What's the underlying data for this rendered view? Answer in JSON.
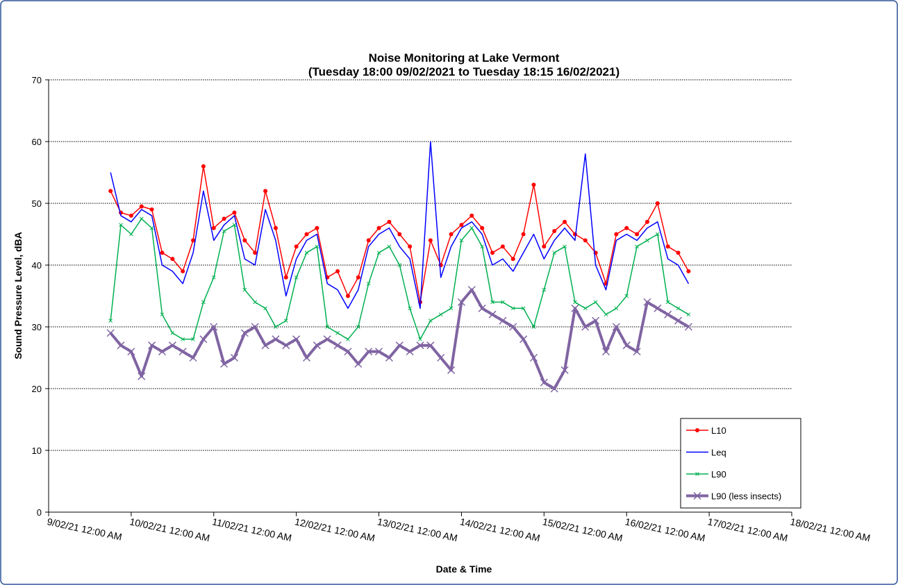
{
  "chart_data": {
    "type": "line",
    "title": "Noise Monitoring at Lake Vermont",
    "subtitle": "(Tuesday 18:00 09/02/2021 to Tuesday 18:15 16/02/2021)",
    "x_label": "Date & Time",
    "y_label": "Sound Pressure Level, dBA",
    "x": [
      "2021-02-09T18:00",
      "2021-02-09T21:00",
      "2021-02-10T00:00",
      "2021-02-10T03:00",
      "2021-02-10T06:00",
      "2021-02-10T09:00",
      "2021-02-10T12:00",
      "2021-02-10T15:00",
      "2021-02-10T18:00",
      "2021-02-10T21:00",
      "2021-02-11T00:00",
      "2021-02-11T03:00",
      "2021-02-11T06:00",
      "2021-02-11T09:00",
      "2021-02-11T12:00",
      "2021-02-11T15:00",
      "2021-02-11T18:00",
      "2021-02-11T21:00",
      "2021-02-12T00:00",
      "2021-02-12T03:00",
      "2021-02-12T06:00",
      "2021-02-12T09:00",
      "2021-02-12T12:00",
      "2021-02-12T15:00",
      "2021-02-12T18:00",
      "2021-02-12T21:00",
      "2021-02-13T00:00",
      "2021-02-13T03:00",
      "2021-02-13T06:00",
      "2021-02-13T09:00",
      "2021-02-13T12:00",
      "2021-02-13T15:00",
      "2021-02-13T18:00",
      "2021-02-13T21:00",
      "2021-02-14T00:00",
      "2021-02-14T03:00",
      "2021-02-14T06:00",
      "2021-02-14T09:00",
      "2021-02-14T12:00",
      "2021-02-14T15:00",
      "2021-02-14T18:00",
      "2021-02-14T21:00",
      "2021-02-15T00:00",
      "2021-02-15T03:00",
      "2021-02-15T06:00",
      "2021-02-15T09:00",
      "2021-02-15T12:00",
      "2021-02-15T15:00",
      "2021-02-15T18:00",
      "2021-02-15T21:00",
      "2021-02-16T00:00",
      "2021-02-16T03:00",
      "2021-02-16T06:00",
      "2021-02-16T09:00",
      "2021-02-16T12:00",
      "2021-02-16T15:00",
      "2021-02-16T18:00"
    ],
    "series": [
      {
        "name": "L10",
        "color": "#ff0000",
        "marker": "circle",
        "line_width": 1.5,
        "values": [
          52,
          48.5,
          48,
          49.5,
          49,
          42,
          41,
          39,
          44,
          56,
          46,
          47.5,
          48.5,
          44,
          42,
          52,
          46,
          38,
          43,
          45,
          46,
          38,
          39,
          35,
          38,
          44,
          46,
          47,
          45,
          43,
          34,
          44,
          40,
          45,
          46.5,
          48,
          46,
          42,
          43,
          41,
          45,
          53,
          43,
          45.5,
          47,
          45,
          44,
          42,
          37,
          45,
          46,
          45,
          47,
          50,
          43,
          42,
          39
        ]
      },
      {
        "name": "Leq",
        "color": "#0000ff",
        "marker": "none",
        "line_width": 1.5,
        "values": [
          55,
          48,
          47,
          49,
          48,
          40,
          39,
          37,
          42,
          52,
          44,
          46.5,
          48,
          41,
          40,
          49,
          44,
          35,
          41,
          44,
          45,
          37,
          36,
          33,
          36,
          43,
          45,
          46,
          43,
          41,
          33,
          60,
          38,
          43,
          46,
          47,
          45,
          40,
          41,
          39,
          42,
          45,
          41,
          44,
          46,
          44,
          58,
          40,
          36,
          44,
          45,
          44,
          46,
          47,
          41,
          40,
          37
        ]
      },
      {
        "name": "L90",
        "color": "#00b050",
        "marker": "x",
        "line_width": 1.5,
        "values": [
          31,
          46.5,
          45,
          47.5,
          46,
          32,
          29,
          28,
          28,
          34,
          38,
          45.5,
          46.5,
          36,
          34,
          33,
          30,
          31,
          38,
          42,
          43,
          30,
          29,
          28,
          30,
          37,
          42,
          43,
          40,
          33,
          28,
          31,
          32,
          33,
          44,
          46,
          43,
          34,
          34,
          33,
          33,
          30,
          36,
          42,
          43,
          34,
          33,
          34,
          32,
          33,
          35,
          43,
          44,
          45,
          34,
          33,
          32
        ]
      },
      {
        "name": "L90 (less insects)",
        "color": "#8064a2",
        "marker": "x",
        "line_width": 4,
        "values": [
          29,
          27,
          26,
          22,
          27,
          26,
          27,
          26,
          25,
          28,
          30,
          24,
          25,
          29,
          30,
          27,
          28,
          27,
          28,
          25,
          27,
          28,
          27,
          26,
          24,
          26,
          26,
          25,
          27,
          26,
          27,
          27,
          25,
          23,
          34,
          36,
          33,
          32,
          31,
          30,
          28,
          25,
          21,
          20,
          23,
          33,
          30,
          31,
          26,
          30,
          27,
          26,
          34,
          33,
          32,
          31,
          30
        ]
      }
    ],
    "xlim": [
      "2021-02-09T00:00",
      "2021-02-18T00:00"
    ],
    "xticks": [
      {
        "value": "2021-02-09T00:00",
        "label": "9/02/21 12:00 AM"
      },
      {
        "value": "2021-02-10T00:00",
        "label": "10/02/21 12:00 AM"
      },
      {
        "value": "2021-02-11T00:00",
        "label": "11/02/21 12:00 AM"
      },
      {
        "value": "2021-02-12T00:00",
        "label": "12/02/21 12:00 AM"
      },
      {
        "value": "2021-02-13T00:00",
        "label": "13/02/21 12:00 AM"
      },
      {
        "value": "2021-02-14T00:00",
        "label": "14/02/21 12:00 AM"
      },
      {
        "value": "2021-02-15T00:00",
        "label": "15/02/21 12:00 AM"
      },
      {
        "value": "2021-02-16T00:00",
        "label": "16/02/21 12:00 AM"
      },
      {
        "value": "2021-02-17T00:00",
        "label": "17/02/21 12:00 AM"
      },
      {
        "value": "2021-02-18T00:00",
        "label": "18/02/21 12:00 AM"
      }
    ],
    "ylim": [
      0,
      70
    ],
    "yticks": [
      0,
      10,
      20,
      30,
      40,
      50,
      60,
      70
    ],
    "grid": true,
    "legend": "lower right"
  }
}
